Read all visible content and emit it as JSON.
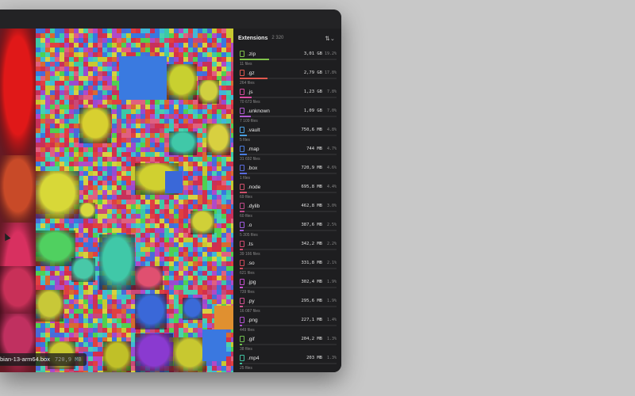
{
  "panel": {
    "title": "Extensions",
    "count": "2 320",
    "sort_icon": "sort-arrows-icon"
  },
  "hover": {
    "name": "bian-13-arm64.box",
    "size": "720,9 MB"
  },
  "extensions": [
    {
      "ext": ".zip",
      "size": "3,01 GB",
      "pct": "19.2%",
      "files": "11 files",
      "fraction": 0.192,
      "color": "#7fc24a"
    },
    {
      "ext": ".gz",
      "size": "2,79 GB",
      "pct": "17.8%",
      "files": "264 files",
      "fraction": 0.178,
      "color": "#e0584f"
    },
    {
      "ext": ".js",
      "size": "1,23 GB",
      "pct": "7.8%",
      "files": "70 673 files",
      "fraction": 0.078,
      "color": "#d94aa0"
    },
    {
      "ext": ".unknown",
      "size": "1,09 GB",
      "pct": "7.0%",
      "files": "7 109 files",
      "fraction": 0.07,
      "color": "#b05ad0"
    },
    {
      "ext": ".vault",
      "size": "750,6 MB",
      "pct": "4.8%",
      "files": "5 files",
      "fraction": 0.048,
      "color": "#4aa0e0"
    },
    {
      "ext": ".map",
      "size": "744 MB",
      "pct": "4.7%",
      "files": "31 692 files",
      "fraction": 0.047,
      "color": "#4a7de0"
    },
    {
      "ext": ".box",
      "size": "720,9 MB",
      "pct": "4.6%",
      "files": "1 files",
      "fraction": 0.046,
      "color": "#5a6ce0"
    },
    {
      "ext": ".node",
      "size": "695,8 MB",
      "pct": "4.4%",
      "files": "69 files",
      "fraction": 0.044,
      "color": "#d0506a"
    },
    {
      "ext": ".dylib",
      "size": "462,8 MB",
      "pct": "3.0%",
      "files": "60 files",
      "fraction": 0.03,
      "color": "#c04a8a"
    },
    {
      "ext": ".o",
      "size": "387,6 MB",
      "pct": "2.5%",
      "files": "5 305 files",
      "fraction": 0.025,
      "color": "#a05ae0"
    },
    {
      "ext": ".ts",
      "size": "342,2 MB",
      "pct": "2.2%",
      "files": "39 166 files",
      "fraction": 0.022,
      "color": "#d04a70"
    },
    {
      "ext": ".so",
      "size": "331,8 MB",
      "pct": "2.1%",
      "files": "621 files",
      "fraction": 0.021,
      "color": "#d04a5a"
    },
    {
      "ext": ".jpg",
      "size": "302,4 MB",
      "pct": "1.9%",
      "files": "739 files",
      "fraction": 0.019,
      "color": "#c850d0"
    },
    {
      "ext": ".py",
      "size": "295,6 MB",
      "pct": "1.9%",
      "files": "16 087 files",
      "fraction": 0.019,
      "color": "#d05090"
    },
    {
      "ext": ".png",
      "size": "227,1 MB",
      "pct": "1.4%",
      "files": "449 files",
      "fraction": 0.014,
      "color": "#b050d0"
    },
    {
      "ext": ".gif",
      "size": "204,2 MB",
      "pct": "1.3%",
      "files": "38 files",
      "fraction": 0.013,
      "color": "#70c050"
    },
    {
      "ext": ".mp4",
      "size": "203 MB",
      "pct": "1.3%",
      "files": "25 files",
      "fraction": 0.013,
      "color": "#40c0a0"
    },
    {
      "ext": ".mjs",
      "size": "176,4 MB",
      "pct": "1.1%",
      "files": "",
      "fraction": 0.011,
      "color": "#d04a6a"
    }
  ]
}
